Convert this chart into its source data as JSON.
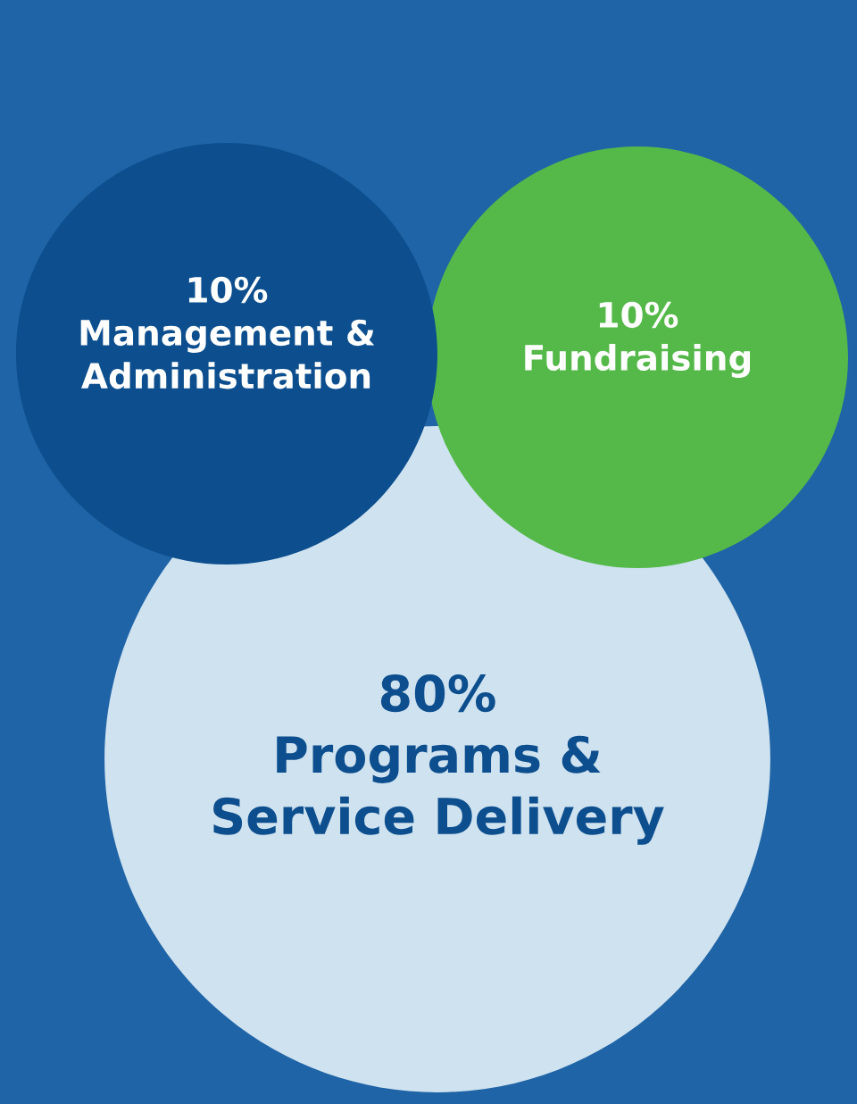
{
  "chart_data": {
    "type": "other",
    "categories": [
      "Management &\nAdministration",
      "Fundraising",
      "Programs &\nService Delivery"
    ],
    "values": [
      10,
      10,
      80
    ],
    "value_labels": [
      "10%",
      "10%",
      "80%"
    ],
    "colors": [
      "#0d4f8e",
      "#55b94a",
      "#cfe2f0"
    ]
  }
}
